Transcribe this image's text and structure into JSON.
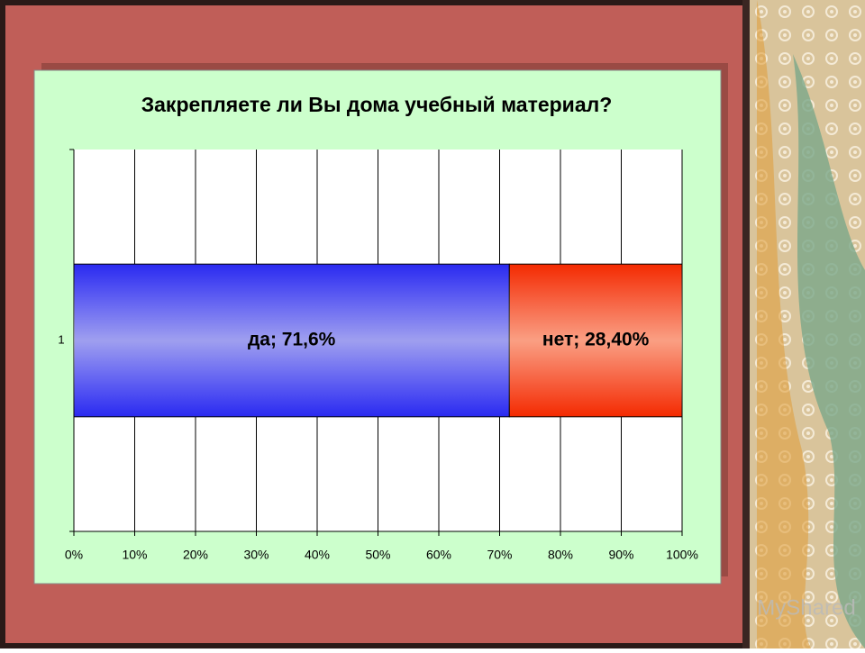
{
  "chart_data": {
    "type": "bar",
    "orientation": "horizontal",
    "stacked": true,
    "title": "Закрепляете ли Вы дома учебный материал?",
    "categories": [
      "1"
    ],
    "series": [
      {
        "name": "да",
        "color": "#2a2af0",
        "values": [
          71.6
        ],
        "value_labels": [
          "да; 71,6%"
        ]
      },
      {
        "name": "нет",
        "color": "#f42a00",
        "values": [
          28.4
        ],
        "value_labels": [
          "нет; 28,40%"
        ]
      }
    ],
    "xlim": [
      0,
      100
    ],
    "xticks": [
      {
        "value": 0,
        "label": "0%"
      },
      {
        "value": 10,
        "label": "10%"
      },
      {
        "value": 20,
        "label": "20%"
      },
      {
        "value": 30,
        "label": "30%"
      },
      {
        "value": 40,
        "label": "40%"
      },
      {
        "value": 50,
        "label": "50%"
      },
      {
        "value": 60,
        "label": "60%"
      },
      {
        "value": 70,
        "label": "70%"
      },
      {
        "value": 80,
        "label": "80%"
      },
      {
        "value": 90,
        "label": "90%"
      },
      {
        "value": 100,
        "label": "100%"
      }
    ],
    "grid": true
  },
  "watermark": "MyShared"
}
